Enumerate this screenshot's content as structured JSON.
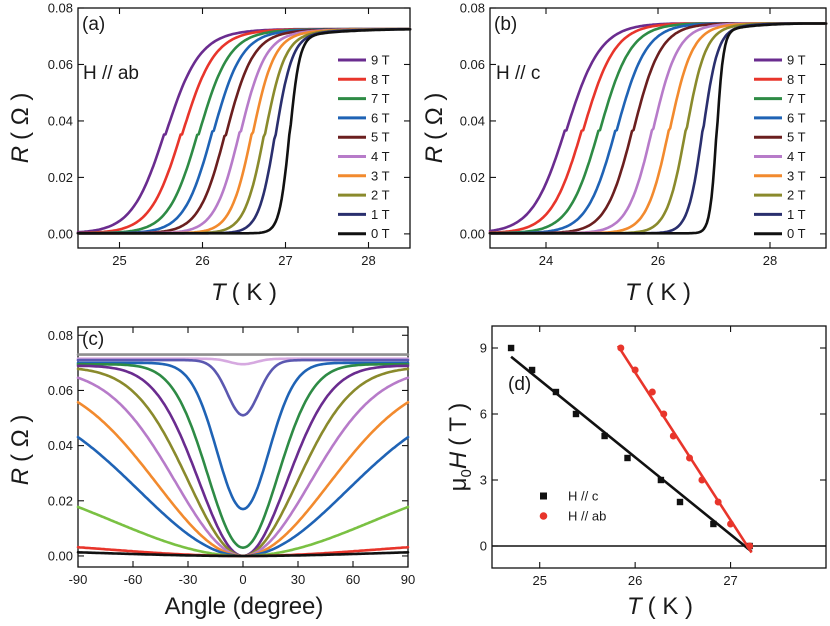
{
  "chart_data": [
    {
      "panel": "(a)",
      "type": "line",
      "annotation": "H // ab",
      "xlabel_italic": "T",
      "xlabel_unit": "( K )",
      "ylabel_italic": "R",
      "ylabel_unit": "( Ω )",
      "xlim": [
        24.5,
        28.5
      ],
      "ylim": [
        -0.005,
        0.08
      ],
      "xticks": [
        25,
        26,
        27,
        28
      ],
      "yticks": [
        0.0,
        0.02,
        0.04,
        0.06,
        0.08
      ],
      "ytick_labels": [
        "0.00",
        "0.02",
        "0.04",
        "0.06",
        "0.08"
      ],
      "legend": [
        "9 T",
        "8 T",
        "7 T",
        "6 T",
        "5 T",
        "4 T",
        "3 T",
        "2 T",
        "1 T",
        "0 T"
      ],
      "series": [
        {
          "name": "9 T",
          "color": "#6a2c8f",
          "Tc": 25.55,
          "width": 0.2
        },
        {
          "name": "8 T",
          "color": "#e8352b",
          "Tc": 25.75,
          "width": 0.19
        },
        {
          "name": "7 T",
          "color": "#2e8b45",
          "Tc": 25.95,
          "width": 0.18
        },
        {
          "name": "6 T",
          "color": "#1f63b5",
          "Tc": 26.12,
          "width": 0.17
        },
        {
          "name": "5 T",
          "color": "#6b1f1f",
          "Tc": 26.28,
          "width": 0.16
        },
        {
          "name": "4 T",
          "color": "#b77bc9",
          "Tc": 26.45,
          "width": 0.15
        },
        {
          "name": "3 T",
          "color": "#f28a2e",
          "Tc": 26.6,
          "width": 0.13
        },
        {
          "name": "2 T",
          "color": "#8a8a2c",
          "Tc": 26.75,
          "width": 0.12
        },
        {
          "name": "1 T",
          "color": "#2a2f6e",
          "Tc": 26.88,
          "width": 0.1
        },
        {
          "name": "0 T",
          "color": "#111111",
          "Tc": 27.05,
          "width": 0.06
        }
      ],
      "Rn": 0.0725
    },
    {
      "panel": "(b)",
      "type": "line",
      "annotation": "H // c",
      "xlabel_italic": "T",
      "xlabel_unit": "( K )",
      "ylabel_italic": "R",
      "ylabel_unit": "( Ω )",
      "xlim": [
        23,
        29
      ],
      "ylim": [
        -0.005,
        0.08
      ],
      "xticks": [
        24,
        26,
        28
      ],
      "yticks": [
        0.0,
        0.02,
        0.04,
        0.06,
        0.08
      ],
      "ytick_labels": [
        "0.00",
        "0.02",
        "0.04",
        "0.06",
        "0.08"
      ],
      "legend": [
        "9 T",
        "8 T",
        "7 T",
        "6 T",
        "5 T",
        "4 T",
        "3 T",
        "2 T",
        "1 T",
        "0 T"
      ],
      "series": [
        {
          "name": "9 T",
          "color": "#6a2c8f",
          "Tc": 24.35,
          "width": 0.3
        },
        {
          "name": "8 T",
          "color": "#e8352b",
          "Tc": 24.65,
          "width": 0.28
        },
        {
          "name": "7 T",
          "color": "#2e8b45",
          "Tc": 24.95,
          "width": 0.27
        },
        {
          "name": "6 T",
          "color": "#1f63b5",
          "Tc": 25.25,
          "width": 0.26
        },
        {
          "name": "5 T",
          "color": "#6b1f1f",
          "Tc": 25.55,
          "width": 0.24
        },
        {
          "name": "4 T",
          "color": "#b77bc9",
          "Tc": 25.9,
          "width": 0.22
        },
        {
          "name": "3 T",
          "color": "#f28a2e",
          "Tc": 26.2,
          "width": 0.2
        },
        {
          "name": "2 T",
          "color": "#8a8a2c",
          "Tc": 26.5,
          "width": 0.17
        },
        {
          "name": "1 T",
          "color": "#2a2f6e",
          "Tc": 26.8,
          "width": 0.13
        },
        {
          "name": "0 T",
          "color": "#111111",
          "Tc": 27.05,
          "width": 0.06
        }
      ],
      "Rn": 0.0745
    },
    {
      "panel": "(c)",
      "type": "line",
      "xlabel": "Angle (degree)",
      "ylabel_italic": "R",
      "ylabel_unit": "( Ω )",
      "xlim": [
        -90,
        90
      ],
      "ylim": [
        -0.004,
        0.083
      ],
      "xticks": [
        -90,
        -60,
        -30,
        0,
        30,
        60,
        90
      ],
      "yticks": [
        0.0,
        0.02,
        0.04,
        0.06,
        0.08
      ],
      "ytick_labels": [
        "0.00",
        "0.02",
        "0.04",
        "0.06",
        "0.08"
      ],
      "series": [
        {
          "color": "#8f8f8f",
          "top": 0.073,
          "dip": 0.073,
          "w": 30
        },
        {
          "color": "#d6a9e0",
          "top": 0.0715,
          "dip": 0.0695,
          "w": 10
        },
        {
          "color": "#5b58b0",
          "top": 0.071,
          "dip": 0.051,
          "w": 12
        },
        {
          "color": "#1f63b5",
          "top": 0.07,
          "dip": 0.017,
          "w": 20
        },
        {
          "color": "#2e8b45",
          "top": 0.0695,
          "dip": 0.003,
          "w": 27
        },
        {
          "color": "#6a2c8f",
          "top": 0.069,
          "dip": 0.0,
          "w": 34
        },
        {
          "color": "#8a8a2c",
          "top": 0.0685,
          "dip": 0.0,
          "w": 42
        },
        {
          "color": "#b77bc9",
          "top": 0.068,
          "dip": 0.0,
          "w": 52
        },
        {
          "color": "#f28a2e",
          "top": 0.066,
          "dip": 0.0,
          "w": 66
        },
        {
          "color": "#1f63b5",
          "top": 0.06,
          "dip": 0.0,
          "w": 80
        },
        {
          "color": "#7ac143",
          "top": 0.032,
          "dip": 0.0,
          "w": 100
        },
        {
          "color": "#e8352b",
          "top": 0.006,
          "dip": 0.0,
          "w": 104
        },
        {
          "color": "#111111",
          "top": 0.0025,
          "dip": 0.0,
          "w": 104
        }
      ]
    },
    {
      "panel": "(d)",
      "type": "scatter",
      "xlabel_italic": "T",
      "xlabel_unit": "( K )",
      "ylabel_prefix": "μ",
      "ylabel_sub": "0",
      "ylabel_italic": "H",
      "ylabel_unit": "( T )",
      "xlim": [
        24.5,
        28
      ],
      "ylim": [
        -1,
        10
      ],
      "xticks": [
        25,
        26,
        27
      ],
      "yticks": [
        0,
        3,
        6,
        9
      ],
      "series": [
        {
          "name": "H // c",
          "marker": "square",
          "color": "#111111",
          "x": [
            24.7,
            24.92,
            25.17,
            25.38,
            25.68,
            25.92,
            26.27,
            26.47,
            26.82,
            27.2
          ],
          "y": [
            9,
            8,
            7,
            6,
            5,
            4,
            3,
            2,
            1,
            0
          ],
          "fit": {
            "x": [
              24.7,
              27.22
            ],
            "y": [
              8.6,
              -0.25
            ]
          }
        },
        {
          "name": "H // ab",
          "marker": "circle",
          "color": "#e8352b",
          "x": [
            25.85,
            26.0,
            26.18,
            26.3,
            26.4,
            26.57,
            26.7,
            26.87,
            27.0,
            27.2
          ],
          "y": [
            9,
            8,
            7,
            6,
            5,
            4,
            3,
            2,
            1,
            0
          ],
          "fit": {
            "x": [
              25.82,
              27.22
            ],
            "y": [
              9.1,
              -0.3
            ]
          }
        }
      ],
      "hline": 0
    }
  ]
}
